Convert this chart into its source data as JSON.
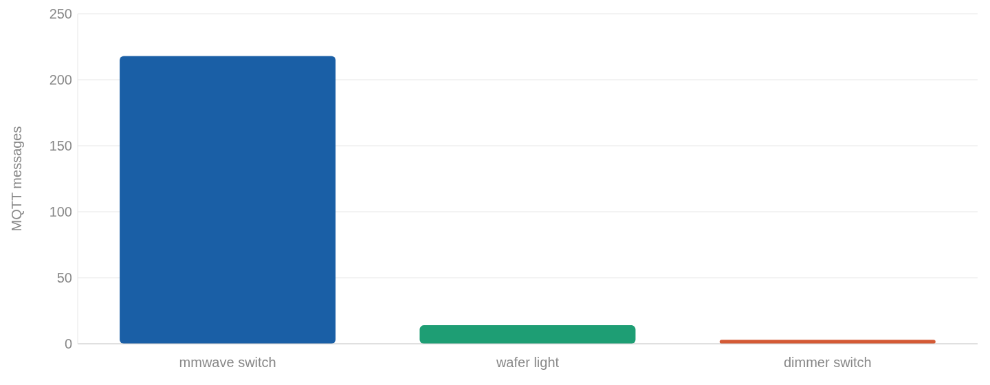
{
  "chart_data": {
    "type": "bar",
    "ylabel": "MQTT messages",
    "categories": [
      "mmwave switch",
      "wafer light",
      "dimmer switch"
    ],
    "values": [
      218,
      14,
      3
    ],
    "colors": [
      "#1a5fa6",
      "#1e9e74",
      "#d45a35"
    ],
    "ylim": [
      0,
      250
    ],
    "yticks": [
      0,
      50,
      100,
      150,
      200,
      250
    ],
    "grid": "y"
  }
}
